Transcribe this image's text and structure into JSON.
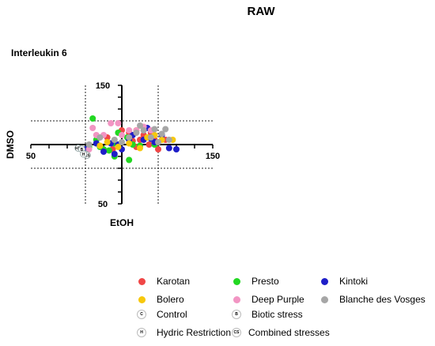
{
  "header": {
    "title": "RAW"
  },
  "chart_title": "Interleukin 6",
  "chart_data": {
    "type": "scatter",
    "title": "Interleukin 6",
    "xlabel": "EtOH",
    "ylabel": "DMSO",
    "xlim": [
      50,
      150
    ],
    "ylim": [
      50,
      150
    ],
    "x_ticks": [
      "50",
      "150"
    ],
    "y_ticks": [
      "150",
      "50"
    ],
    "x_ref_lines": [
      80,
      120
    ],
    "y_ref_lines": [
      80,
      120
    ],
    "grid": false,
    "legend_position": "bottom",
    "series": [
      {
        "name": "Karotan",
        "color": "#f04646",
        "points": [
          [
            92,
            106
          ],
          [
            95,
            96
          ],
          [
            100,
            112
          ],
          [
            104,
            110
          ],
          [
            106,
            103
          ],
          [
            108,
            98
          ],
          [
            110,
            104
          ],
          [
            112,
            108
          ],
          [
            115,
            100
          ],
          [
            116,
            110
          ],
          [
            118,
            104
          ],
          [
            120,
            96
          ],
          [
            124,
            104
          ]
        ]
      },
      {
        "name": "Presto",
        "color": "#22d822",
        "points": [
          [
            84,
            122
          ],
          [
            86,
            104
          ],
          [
            88,
            98
          ],
          [
            90,
            96
          ],
          [
            93,
            95
          ],
          [
            96,
            101
          ],
          [
            98,
            110
          ],
          [
            103,
            106
          ],
          [
            106,
            100
          ],
          [
            110,
            99
          ],
          [
            118,
            100
          ],
          [
            82,
            98
          ],
          [
            96,
            90
          ],
          [
            104,
            87
          ]
        ]
      },
      {
        "name": "Kintoki",
        "color": "#1e1ec8",
        "points": [
          [
            80,
            96
          ],
          [
            86,
            101
          ],
          [
            90,
            94
          ],
          [
            94,
            101
          ],
          [
            98,
            100
          ],
          [
            100,
            96
          ],
          [
            104,
            104
          ],
          [
            106,
            108
          ],
          [
            112,
            104
          ],
          [
            114,
            114
          ],
          [
            116,
            105
          ],
          [
            118,
            102
          ],
          [
            122,
            108
          ],
          [
            126,
            97
          ],
          [
            130,
            96
          ],
          [
            96,
            92
          ]
        ]
      },
      {
        "name": "Bolero",
        "color": "#f7c80c",
        "points": [
          [
            92,
            102
          ],
          [
            98,
            98
          ],
          [
            104,
            101
          ],
          [
            108,
            112
          ],
          [
            114,
            106
          ],
          [
            118,
            108
          ],
          [
            122,
            104
          ],
          [
            128,
            104
          ],
          [
            88,
            99
          ],
          [
            110,
            97
          ]
        ]
      },
      {
        "name": "Deep Purple",
        "color": "#f295c3",
        "points": [
          [
            78,
            96
          ],
          [
            82,
            96
          ],
          [
            84,
            114
          ],
          [
            86,
            108
          ],
          [
            90,
            108
          ],
          [
            94,
            118
          ],
          [
            98,
            118
          ],
          [
            100,
            108
          ],
          [
            104,
            112
          ],
          [
            108,
            112
          ],
          [
            112,
            115
          ],
          [
            116,
            112
          ],
          [
            80,
            92
          ]
        ]
      },
      {
        "name": "Blanche des Vosges",
        "color": "#a6a6a6",
        "points": [
          [
            82,
            100
          ],
          [
            96,
            104
          ],
          [
            100,
            102
          ],
          [
            104,
            106
          ],
          [
            108,
            110
          ],
          [
            110,
            116
          ],
          [
            112,
            112
          ],
          [
            116,
            106
          ],
          [
            118,
            113
          ],
          [
            120,
            102
          ],
          [
            122,
            109
          ],
          [
            124,
            113
          ],
          [
            126,
            104
          ],
          [
            88,
            106
          ]
        ]
      }
    ],
    "conditions": [
      {
        "name": "Control",
        "code": "C"
      },
      {
        "name": "Biotic stress",
        "code": "B"
      },
      {
        "name": "Hydric Restriction",
        "code": "H"
      },
      {
        "name": "Combined stresses",
        "code": "CS"
      }
    ],
    "condition_markers": [
      {
        "code": "HR",
        "x": 76,
        "y": 97
      },
      {
        "code": "B",
        "x": 78,
        "y": 96
      },
      {
        "code": "H",
        "x": 80,
        "y": 92
      },
      {
        "code": "CS",
        "x": 81,
        "y": 91
      },
      {
        "code": "H",
        "x": 79,
        "y": 92
      }
    ]
  }
}
